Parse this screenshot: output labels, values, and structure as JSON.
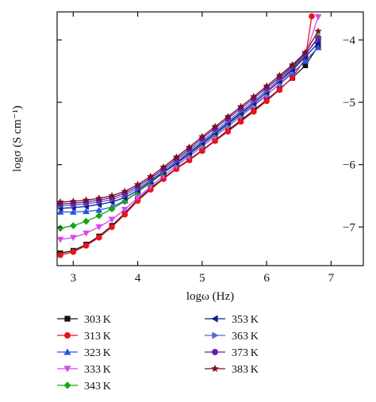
{
  "chart_data": {
    "type": "scatter",
    "xlabel": "logω (Hz)",
    "ylabel": "logσ (S cm⁻¹)",
    "xlim": [
      2.75,
      7.5
    ],
    "ylim": [
      -7.62,
      -3.55
    ],
    "xticks": [
      3,
      4,
      5,
      6,
      7
    ],
    "yticks": [
      -7,
      -6,
      -5,
      -4
    ],
    "xtick_labels": [
      "3",
      "4",
      "5",
      "6",
      "7"
    ],
    "ytick_labels": [
      "−7",
      "−6",
      "−5",
      "−4"
    ],
    "legend_placement": "below",
    "series": [
      {
        "name": "303 K",
        "color": "#111111",
        "marker": "square",
        "x": [
          2.8,
          3.0,
          3.2,
          3.4,
          3.6,
          3.8,
          4.0,
          4.2,
          4.4,
          4.6,
          4.8,
          5.0,
          5.2,
          5.4,
          5.6,
          5.8,
          6.0,
          6.2,
          6.4,
          6.6,
          6.8
        ],
        "y": [
          -7.42,
          -7.38,
          -7.28,
          -7.15,
          -6.98,
          -6.78,
          -6.56,
          -6.38,
          -6.22,
          -6.06,
          -5.92,
          -5.77,
          -5.61,
          -5.45,
          -5.29,
          -5.13,
          -4.96,
          -4.79,
          -4.61,
          -4.41,
          -4.1
        ]
      },
      {
        "name": "313 K",
        "color": "#e8131b",
        "marker": "circle",
        "x": [
          2.8,
          3.0,
          3.2,
          3.4,
          3.6,
          3.8,
          4.0,
          4.2,
          4.4,
          4.6,
          4.8,
          5.0,
          5.2,
          5.4,
          5.6,
          5.8,
          6.0,
          6.2,
          6.4,
          6.6,
          6.7
        ],
        "y": [
          -7.45,
          -7.4,
          -7.3,
          -7.17,
          -7.0,
          -6.8,
          -6.58,
          -6.4,
          -6.23,
          -6.07,
          -5.93,
          -5.78,
          -5.62,
          -5.47,
          -5.31,
          -5.15,
          -4.98,
          -4.8,
          -4.6,
          -4.3,
          -3.62
        ]
      },
      {
        "name": "323 K",
        "color": "#2554ea",
        "marker": "triangle-up",
        "x": [
          2.8,
          3.0,
          3.2,
          3.4,
          3.6,
          3.8,
          4.0,
          4.2,
          4.4,
          4.6,
          4.8,
          5.0,
          5.2,
          5.4,
          5.6,
          5.8,
          6.0,
          6.2,
          6.4,
          6.6,
          6.8
        ],
        "y": [
          -6.76,
          -6.76,
          -6.75,
          -6.73,
          -6.68,
          -6.58,
          -6.44,
          -6.29,
          -6.13,
          -5.99,
          -5.84,
          -5.68,
          -5.52,
          -5.36,
          -5.2,
          -5.04,
          -4.88,
          -4.71,
          -4.53,
          -4.34,
          -4.12
        ]
      },
      {
        "name": "333 K",
        "color": "#d64bea",
        "marker": "triangle-down",
        "x": [
          2.8,
          3.0,
          3.2,
          3.4,
          3.6,
          3.8,
          4.0,
          4.2,
          4.4,
          4.6,
          4.8,
          5.0,
          5.2,
          5.4,
          5.6,
          5.8,
          6.0,
          6.2,
          6.4,
          6.6,
          6.8
        ],
        "y": [
          -7.2,
          -7.17,
          -7.1,
          -7.0,
          -6.88,
          -6.72,
          -6.53,
          -6.35,
          -6.18,
          -6.02,
          -5.87,
          -5.71,
          -5.55,
          -5.39,
          -5.23,
          -5.06,
          -4.89,
          -4.7,
          -4.5,
          -4.25,
          -3.63
        ]
      },
      {
        "name": "343 K",
        "color": "#17a319",
        "marker": "diamond",
        "x": [
          2.8,
          3.0,
          3.2,
          3.4,
          3.6,
          3.8,
          4.0,
          4.2,
          4.4,
          4.6,
          4.8,
          5.0,
          5.2,
          5.4,
          5.6,
          5.8,
          6.0,
          6.2,
          6.4,
          6.6,
          6.8
        ],
        "y": [
          -7.02,
          -6.98,
          -6.91,
          -6.82,
          -6.71,
          -6.59,
          -6.44,
          -6.29,
          -6.13,
          -5.97,
          -5.82,
          -5.66,
          -5.5,
          -5.34,
          -5.18,
          -5.01,
          -4.84,
          -4.66,
          -4.46,
          -4.24,
          -3.95
        ]
      },
      {
        "name": "353 K",
        "color": "#0f1f8c",
        "marker": "triangle-left",
        "x": [
          2.8,
          3.0,
          3.2,
          3.4,
          3.6,
          3.8,
          4.0,
          4.2,
          4.4,
          4.6,
          4.8,
          5.0,
          5.2,
          5.4,
          5.6,
          5.8,
          6.0,
          6.2,
          6.4,
          6.6,
          6.8
        ],
        "y": [
          -6.7,
          -6.69,
          -6.67,
          -6.64,
          -6.6,
          -6.53,
          -6.41,
          -6.27,
          -6.12,
          -5.97,
          -5.81,
          -5.65,
          -5.49,
          -5.33,
          -5.17,
          -5.01,
          -4.84,
          -4.66,
          -4.48,
          -4.27,
          -4.05
        ]
      },
      {
        "name": "363 K",
        "color": "#5a65d0",
        "marker": "triangle-right",
        "x": [
          2.8,
          3.0,
          3.2,
          3.4,
          3.6,
          3.8,
          4.0,
          4.2,
          4.4,
          4.6,
          4.8,
          5.0,
          5.2,
          5.4,
          5.6,
          5.8,
          6.0,
          6.2,
          6.4,
          6.6,
          6.8
        ],
        "y": [
          -6.66,
          -6.65,
          -6.63,
          -6.6,
          -6.56,
          -6.49,
          -6.38,
          -6.25,
          -6.1,
          -5.94,
          -5.78,
          -5.62,
          -5.46,
          -5.3,
          -5.14,
          -4.98,
          -4.81,
          -4.63,
          -4.44,
          -4.23,
          -3.98
        ]
      },
      {
        "name": "373 K",
        "color": "#6a1fb0",
        "marker": "circle",
        "x": [
          2.8,
          3.0,
          3.2,
          3.4,
          3.6,
          3.8,
          4.0,
          4.2,
          4.4,
          4.6,
          4.8,
          5.0,
          5.2,
          5.4,
          5.6,
          5.8,
          6.0,
          6.2,
          6.4,
          6.6,
          6.8
        ],
        "y": [
          -6.63,
          -6.62,
          -6.6,
          -6.57,
          -6.53,
          -6.46,
          -6.35,
          -6.22,
          -6.07,
          -5.91,
          -5.75,
          -5.58,
          -5.42,
          -5.26,
          -5.1,
          -4.94,
          -4.77,
          -4.6,
          -4.42,
          -4.22,
          -3.98
        ]
      },
      {
        "name": "383 K",
        "color": "#7a1020",
        "marker": "star",
        "x": [
          2.8,
          3.0,
          3.2,
          3.4,
          3.6,
          3.8,
          4.0,
          4.2,
          4.4,
          4.6,
          4.8,
          5.0,
          5.2,
          5.4,
          5.6,
          5.8,
          6.0,
          6.2,
          6.4,
          6.6,
          6.8
        ],
        "y": [
          -6.6,
          -6.59,
          -6.57,
          -6.54,
          -6.5,
          -6.43,
          -6.32,
          -6.19,
          -6.04,
          -5.88,
          -5.72,
          -5.55,
          -5.39,
          -5.23,
          -5.07,
          -4.91,
          -4.74,
          -4.57,
          -4.4,
          -4.2,
          -3.86
        ]
      }
    ]
  }
}
